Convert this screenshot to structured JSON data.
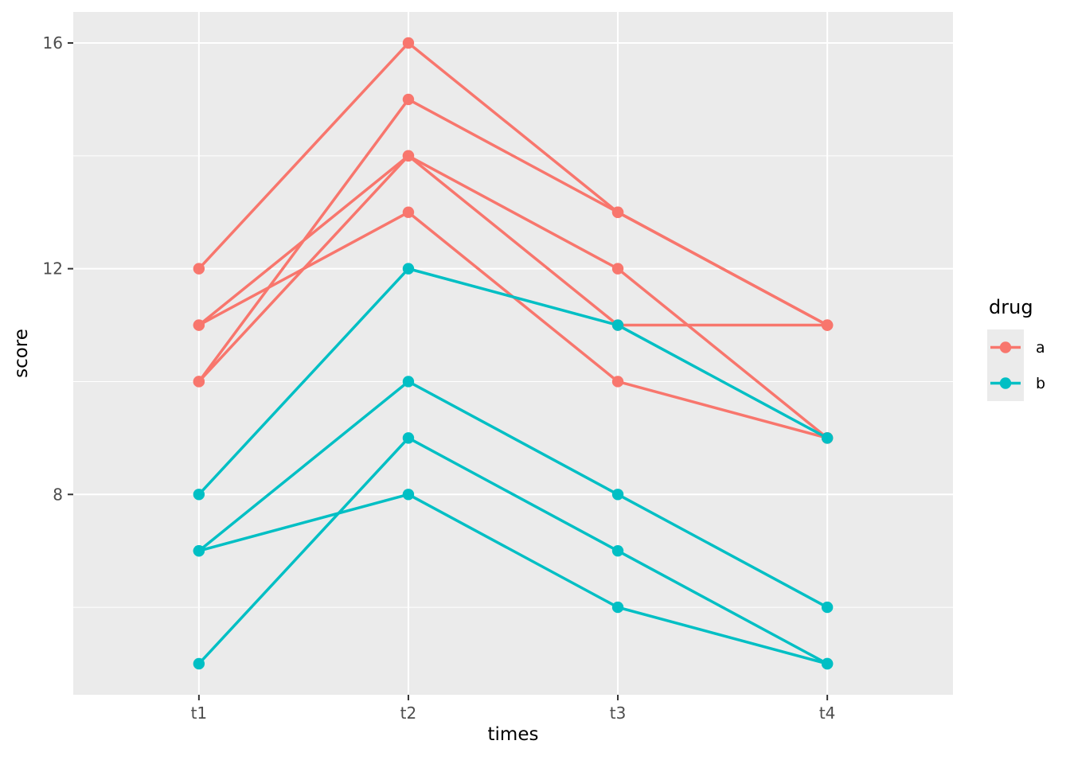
{
  "figure": {
    "background": "#FFFFFF",
    "panel_background": "#EBEBEB",
    "grid_color": "#FFFFFF",
    "tick_mark_color": "#333333",
    "tick_label_color": "#4D4D4D",
    "axis_title_color": "#000000"
  },
  "chart_data": {
    "type": "line",
    "title": "",
    "xlabel": "times",
    "ylabel": "score",
    "categories": [
      "t1",
      "t2",
      "t3",
      "t4"
    ],
    "y_ticks": [
      8,
      12,
      16
    ],
    "y_minor_ticks": [
      6,
      10,
      14
    ],
    "ylim": [
      4.45,
      16.55
    ],
    "grid": true,
    "legend": {
      "title": "drug",
      "position": "right",
      "entries": [
        {
          "label": "a",
          "color": "#F8766D"
        },
        {
          "label": "b",
          "color": "#00BFC4"
        }
      ]
    },
    "series": [
      {
        "name": "a",
        "color": "#F8766D",
        "subjects": [
          {
            "values": [
              12,
              16,
              13,
              11
            ]
          },
          {
            "values": [
              10,
              15,
              13,
              11
            ]
          },
          {
            "values": [
              11,
              14,
              12,
              9
            ]
          },
          {
            "values": [
              10,
              14,
              11,
              11
            ]
          },
          {
            "values": [
              11,
              13,
              10,
              9
            ]
          }
        ]
      },
      {
        "name": "b",
        "color": "#00BFC4",
        "subjects": [
          {
            "values": [
              8,
              12,
              11,
              9
            ]
          },
          {
            "values": [
              7,
              10,
              8,
              6
            ]
          },
          {
            "values": [
              7,
              8,
              6,
              5
            ]
          },
          {
            "values": [
              5,
              9,
              7,
              5
            ]
          }
        ]
      }
    ]
  }
}
